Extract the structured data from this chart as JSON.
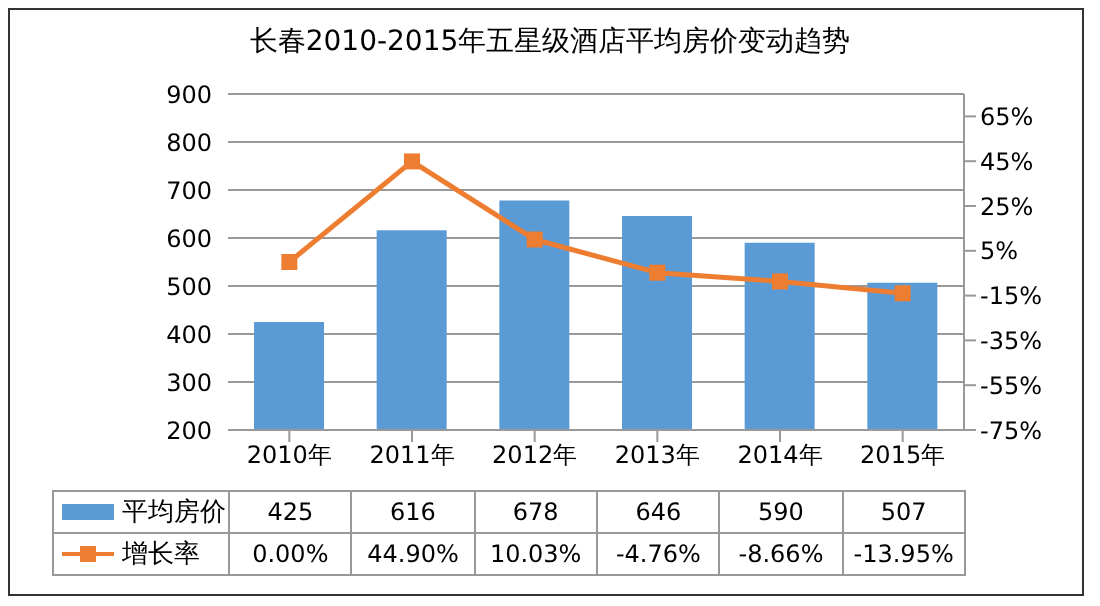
{
  "chart_data": {
    "type": "bar",
    "title": "长春2010-2015年五星级酒店平均房价变动趋势",
    "categories": [
      "2010年",
      "2011年",
      "2012年",
      "2013年",
      "2014年",
      "2015年"
    ],
    "series": [
      {
        "name": "平均房价",
        "color": "#5b9bd5",
        "values": [
          425,
          616,
          678,
          646,
          590,
          507
        ],
        "value_labels": [
          "425",
          "616",
          "678",
          "646",
          "590",
          "507"
        ]
      },
      {
        "name": "增长率",
        "type": "line",
        "axis": "y2",
        "color": "#ed7d31",
        "marker": "square",
        "values": [
          0,
          44.9,
          10.03,
          -4.76,
          -8.66,
          -13.95
        ],
        "value_labels": [
          "0.00%",
          "44.90%",
          "10.03%",
          "-4.76%",
          "-8.66%",
          "-13.95%"
        ]
      }
    ],
    "ylim": [
      200,
      900
    ],
    "yticks": [
      200,
      300,
      400,
      500,
      600,
      700,
      800,
      900
    ],
    "y2lim": [
      -75,
      75
    ],
    "y2ticks": [
      {
        "value": -75,
        "label": "-75%"
      },
      {
        "value": -55,
        "label": "-55%"
      },
      {
        "value": -35,
        "label": "-35%"
      },
      {
        "value": -15,
        "label": "-15%"
      },
      {
        "value": 5,
        "label": "5%"
      },
      {
        "value": 25,
        "label": "25%"
      },
      {
        "value": 45,
        "label": "45%"
      },
      {
        "value": 65,
        "label": "65%"
      }
    ],
    "grid": "y",
    "legend": "bottom"
  }
}
